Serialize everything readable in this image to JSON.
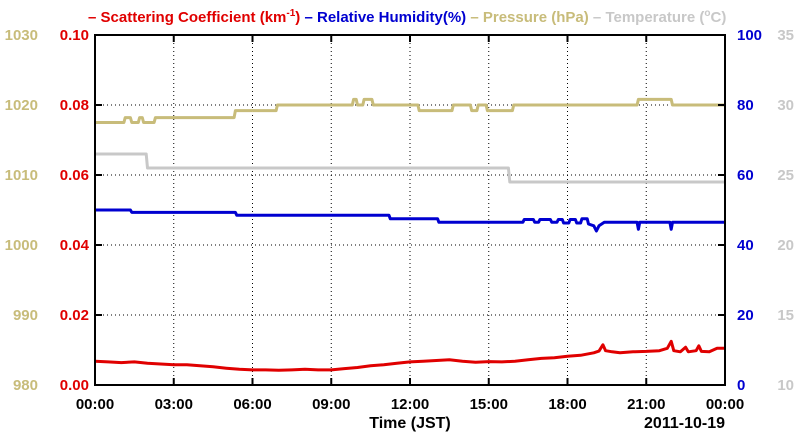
{
  "chart_data": {
    "type": "line",
    "title": "",
    "xlabel": "Time (JST)",
    "date_label": "2011-10-19",
    "x_ticks": [
      "00:00",
      "03:00",
      "06:00",
      "09:00",
      "12:00",
      "15:00",
      "18:00",
      "21:00",
      "00:00"
    ],
    "xlim_hours": [
      0,
      24
    ],
    "grid": true,
    "legend_position": "top",
    "axes": {
      "scattering": {
        "ticks": [
          "0.00",
          "0.02",
          "0.04",
          "0.06",
          "0.08",
          "0.10"
        ],
        "ylim": [
          0,
          0.1
        ],
        "color": "#e00000",
        "side": "left-inner"
      },
      "pressure": {
        "ticks": [
          "980",
          "990",
          "1000",
          "1010",
          "1020",
          "1030"
        ],
        "ylim": [
          980,
          1030
        ],
        "color": "#c8bc7a",
        "side": "left-outer"
      },
      "humidity": {
        "ticks": [
          "0",
          "20",
          "40",
          "60",
          "80",
          "100"
        ],
        "ylim": [
          0,
          100
        ],
        "color": "#0000d0",
        "side": "right-inner"
      },
      "temperature": {
        "ticks": [
          "10",
          "15",
          "20",
          "25",
          "30",
          "35"
        ],
        "ylim": [
          10,
          35
        ],
        "color": "#c8c8c8",
        "side": "right-outer"
      }
    },
    "legend": [
      {
        "key": "scattering",
        "text": "Scattering Coefficient (km",
        "sup": "-1",
        "suffix": ")",
        "color": "#e00000"
      },
      {
        "key": "humidity",
        "text": "Relative Humidity(%)",
        "sup": "",
        "suffix": "",
        "color": "#0000d0"
      },
      {
        "key": "pressure",
        "text": "Pressure (hPa)",
        "sup": "",
        "suffix": "",
        "color": "#c8bc7a"
      },
      {
        "key": "temperature",
        "text": "Temperature (",
        "sup": "o",
        "suffix": "C)",
        "color": "#c8c8c8"
      }
    ],
    "series": [
      {
        "name": "Pressure (hPa)",
        "axis": "pressure",
        "color": "#c8bc7a",
        "points": [
          [
            0,
            1017.5
          ],
          [
            1.1,
            1017.5
          ],
          [
            1.15,
            1018.2
          ],
          [
            1.35,
            1018.2
          ],
          [
            1.4,
            1017.5
          ],
          [
            1.65,
            1017.5
          ],
          [
            1.7,
            1018.2
          ],
          [
            1.8,
            1018.2
          ],
          [
            1.85,
            1017.5
          ],
          [
            2.25,
            1017.5
          ],
          [
            2.3,
            1018.2
          ],
          [
            5.3,
            1018.2
          ],
          [
            5.35,
            1019.2
          ],
          [
            6.9,
            1019.2
          ],
          [
            6.95,
            1020
          ],
          [
            9.8,
            1020
          ],
          [
            9.85,
            1020.8
          ],
          [
            9.95,
            1020.8
          ],
          [
            10,
            1020
          ],
          [
            10.2,
            1020
          ],
          [
            10.25,
            1020.8
          ],
          [
            10.55,
            1020.8
          ],
          [
            10.6,
            1020
          ],
          [
            12.3,
            1020
          ],
          [
            12.35,
            1019.2
          ],
          [
            13.6,
            1019.2
          ],
          [
            13.65,
            1020
          ],
          [
            14.3,
            1020
          ],
          [
            14.35,
            1019.2
          ],
          [
            14.55,
            1019.2
          ],
          [
            14.6,
            1020
          ],
          [
            14.9,
            1020
          ],
          [
            14.95,
            1019.2
          ],
          [
            15.9,
            1019.2
          ],
          [
            15.95,
            1020
          ],
          [
            20.65,
            1020
          ],
          [
            20.7,
            1020.8
          ],
          [
            21.95,
            1020.8
          ],
          [
            22,
            1020
          ],
          [
            24,
            1020
          ]
        ]
      },
      {
        "name": "Temperature (C)",
        "axis": "temperature",
        "color": "#c8c8c8",
        "points": [
          [
            0,
            26.5
          ],
          [
            1.95,
            26.5
          ],
          [
            2,
            25.5
          ],
          [
            15.75,
            25.5
          ],
          [
            15.8,
            24.5
          ],
          [
            24,
            24.5
          ]
        ]
      },
      {
        "name": "Relative Humidity(%)",
        "axis": "humidity",
        "color": "#0000d0",
        "points": [
          [
            0,
            50
          ],
          [
            1.35,
            50
          ],
          [
            1.4,
            49.3
          ],
          [
            5.35,
            49.3
          ],
          [
            5.4,
            48.5
          ],
          [
            11.2,
            48.5
          ],
          [
            11.25,
            47.5
          ],
          [
            13.05,
            47.5
          ],
          [
            13.1,
            46.5
          ],
          [
            16.3,
            46.5
          ],
          [
            16.35,
            47.3
          ],
          [
            16.7,
            47.3
          ],
          [
            16.75,
            46.5
          ],
          [
            16.9,
            46.5
          ],
          [
            16.95,
            47.3
          ],
          [
            17.35,
            47.3
          ],
          [
            17.4,
            46.5
          ],
          [
            17.6,
            46.5
          ],
          [
            17.65,
            47.3
          ],
          [
            17.8,
            47.3
          ],
          [
            17.85,
            46.3
          ],
          [
            18.05,
            46.3
          ],
          [
            18.1,
            47.3
          ],
          [
            18.3,
            47.3
          ],
          [
            18.35,
            46.3
          ],
          [
            18.5,
            46.3
          ],
          [
            18.55,
            47.5
          ],
          [
            18.75,
            47.5
          ],
          [
            18.8,
            46
          ],
          [
            19,
            45.5
          ],
          [
            19.1,
            44
          ],
          [
            19.2,
            45.5
          ],
          [
            19.4,
            46.5
          ],
          [
            20.65,
            46.5
          ],
          [
            20.7,
            44.5
          ],
          [
            20.75,
            46.5
          ],
          [
            21.9,
            46.5
          ],
          [
            21.95,
            44.5
          ],
          [
            22,
            46.5
          ],
          [
            24,
            46.5
          ]
        ]
      },
      {
        "name": "Scattering Coefficient (km-1)",
        "axis": "scattering",
        "color": "#e00000",
        "points": [
          [
            0,
            0.0068
          ],
          [
            0.5,
            0.0066
          ],
          [
            1,
            0.0064
          ],
          [
            1.5,
            0.0066
          ],
          [
            2,
            0.0062
          ],
          [
            2.5,
            0.006
          ],
          [
            3,
            0.0058
          ],
          [
            3.5,
            0.0058
          ],
          [
            4,
            0.0055
          ],
          [
            4.5,
            0.0052
          ],
          [
            5,
            0.0048
          ],
          [
            5.5,
            0.0045
          ],
          [
            6,
            0.0043
          ],
          [
            6.5,
            0.0043
          ],
          [
            7,
            0.0042
          ],
          [
            7.5,
            0.0043
          ],
          [
            8,
            0.0045
          ],
          [
            8.5,
            0.0043
          ],
          [
            9,
            0.0043
          ],
          [
            9.5,
            0.0047
          ],
          [
            10,
            0.005
          ],
          [
            10.5,
            0.0055
          ],
          [
            11,
            0.0058
          ],
          [
            11.5,
            0.0062
          ],
          [
            12,
            0.0066
          ],
          [
            12.5,
            0.0068
          ],
          [
            13,
            0.007
          ],
          [
            13.5,
            0.0072
          ],
          [
            14,
            0.0068
          ],
          [
            14.5,
            0.0065
          ],
          [
            15,
            0.0067
          ],
          [
            15.5,
            0.0066
          ],
          [
            16,
            0.0068
          ],
          [
            16.5,
            0.0072
          ],
          [
            17,
            0.0076
          ],
          [
            17.5,
            0.0078
          ],
          [
            18,
            0.0082
          ],
          [
            18.5,
            0.0085
          ],
          [
            19,
            0.0092
          ],
          [
            19.2,
            0.0097
          ],
          [
            19.35,
            0.0115
          ],
          [
            19.45,
            0.0098
          ],
          [
            19.7,
            0.0095
          ],
          [
            20,
            0.0092
          ],
          [
            20.5,
            0.0095
          ],
          [
            21,
            0.0096
          ],
          [
            21.5,
            0.0098
          ],
          [
            21.8,
            0.0105
          ],
          [
            21.95,
            0.0125
          ],
          [
            22.05,
            0.0098
          ],
          [
            22.3,
            0.0095
          ],
          [
            22.5,
            0.0108
          ],
          [
            22.6,
            0.0095
          ],
          [
            22.9,
            0.0098
          ],
          [
            23,
            0.0112
          ],
          [
            23.1,
            0.0096
          ],
          [
            23.4,
            0.0095
          ],
          [
            23.7,
            0.0105
          ],
          [
            24,
            0.0105
          ]
        ]
      }
    ]
  }
}
